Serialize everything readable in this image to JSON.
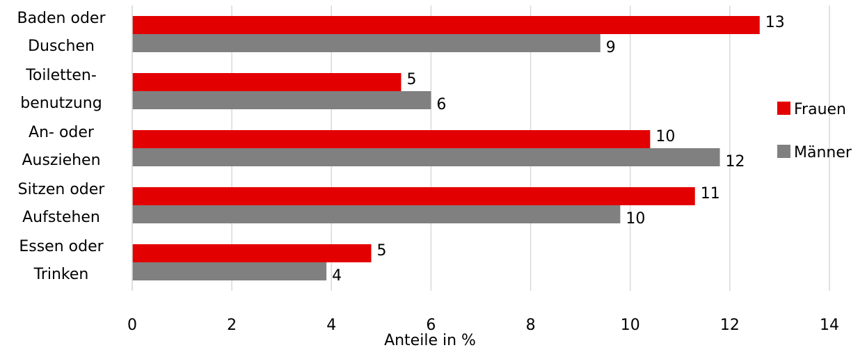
{
  "chart_data": {
    "type": "bar",
    "orientation": "horizontal",
    "categories": [
      [
        "Baden oder",
        "Duschen"
      ],
      [
        "Toiletten-",
        "benutzung"
      ],
      [
        "An- oder",
        "Ausziehen"
      ],
      [
        "Sitzen oder",
        "Aufstehen"
      ],
      [
        "Essen oder",
        "Trinken"
      ]
    ],
    "series": [
      {
        "name": "Frauen",
        "color": "#e30000",
        "values": [
          12.6,
          5.4,
          10.4,
          11.3,
          4.8
        ],
        "labels": [
          "13",
          "5",
          "10",
          "11",
          "5"
        ]
      },
      {
        "name": "Männer",
        "color": "#808080",
        "values": [
          9.4,
          6.0,
          11.8,
          9.8,
          3.9
        ],
        "labels": [
          "9",
          "6",
          "12",
          "10",
          "4"
        ]
      }
    ],
    "xlabel": "Anteile in %",
    "xlim": [
      0,
      14
    ],
    "xticks": [
      "0",
      "2",
      "4",
      "6",
      "8",
      "10",
      "12",
      "14"
    ],
    "grid": "vertical",
    "legend_position": "right"
  }
}
